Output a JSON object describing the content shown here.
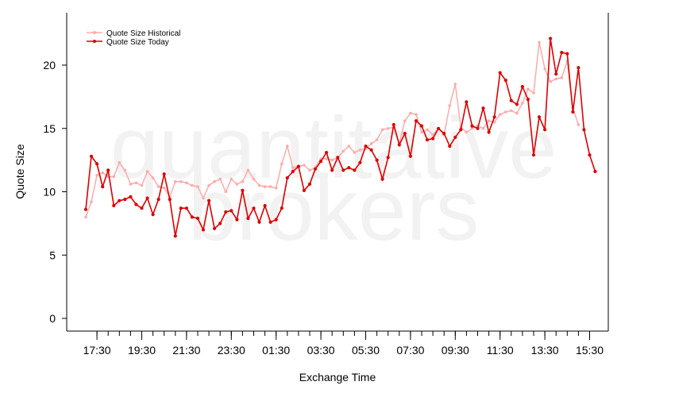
{
  "watermark": {
    "line1": "quantitative",
    "line2": "brokers"
  },
  "chart_data": {
    "type": "line",
    "title": "",
    "xlabel": "Exchange Time",
    "ylabel": "Quote Size",
    "ylim": [
      -1,
      24.5
    ],
    "yticks": [
      0,
      5,
      10,
      15,
      20
    ],
    "xticks": [
      "17:30",
      "19:30",
      "21:30",
      "23:30",
      "01:30",
      "03:30",
      "05:30",
      "07:30",
      "09:30",
      "11:30",
      "13:30",
      "15:30"
    ],
    "x_interval_minutes": 15,
    "x_start": "17:00",
    "grid": false,
    "legend_position": "top-left",
    "series": [
      {
        "name": "Quote Size Historical",
        "color": "#ffaaaa",
        "values": [
          8.0,
          9.2,
          11.3,
          11.5,
          11.2,
          11.2,
          12.3,
          11.7,
          10.6,
          10.7,
          10.5,
          11.6,
          11.1,
          10.4,
          10.3,
          9.6,
          10.8,
          10.8,
          10.7,
          10.5,
          10.4,
          9.5,
          10.5,
          10.8,
          11.0,
          10.0,
          11.0,
          10.6,
          10.8,
          11.7,
          11.0,
          10.5,
          10.4,
          10.4,
          10.3,
          12.2,
          13.6,
          11.9,
          12.0,
          12.1,
          11.7,
          11.9,
          12.6,
          12.6,
          12.5,
          12.7,
          13.2,
          13.6,
          13.1,
          13.3,
          13.4,
          13.8,
          14.1,
          14.9,
          15.0,
          15.1,
          13.8,
          15.6,
          16.2,
          16.1,
          14.7,
          14.9,
          14.5,
          15.0,
          14.5,
          16.8,
          18.5,
          15.1,
          14.7,
          15.0,
          15.2,
          15.0,
          15.6,
          15.5,
          16.1,
          16.3,
          16.4,
          16.2,
          17.0,
          18.1,
          17.8,
          21.8,
          19.7,
          18.7,
          18.9,
          19.0,
          20.3,
          16.6,
          15.3
        ]
      },
      {
        "name": "Quote Size Today",
        "color": "#dd0000",
        "values": [
          8.6,
          12.8,
          12.2,
          10.4,
          11.7,
          8.9,
          9.3,
          9.4,
          9.6,
          9.0,
          8.7,
          9.5,
          8.2,
          9.4,
          11.4,
          9.4,
          6.5,
          8.7,
          8.7,
          8.0,
          7.9,
          7.0,
          9.3,
          7.1,
          7.5,
          8.4,
          8.5,
          7.8,
          10.1,
          7.9,
          8.7,
          7.6,
          8.9,
          7.6,
          7.8,
          8.7,
          11.1,
          11.6,
          12.0,
          10.1,
          10.6,
          11.8,
          12.4,
          13.1,
          11.7,
          12.7,
          11.7,
          11.9,
          11.7,
          12.3,
          13.6,
          13.3,
          12.5,
          11.0,
          12.7,
          15.3,
          13.7,
          14.6,
          12.8,
          15.6,
          15.2,
          14.1,
          14.2,
          15.0,
          14.6,
          13.6,
          14.3,
          14.9,
          17.1,
          15.2,
          15.0,
          16.6,
          14.7,
          15.9,
          19.4,
          18.8,
          17.2,
          16.9,
          18.3,
          17.3,
          12.9,
          15.9,
          14.9,
          22.1,
          19.3,
          21.0,
          20.9,
          16.3,
          19.8,
          14.9,
          12.9,
          11.6
        ]
      }
    ]
  }
}
